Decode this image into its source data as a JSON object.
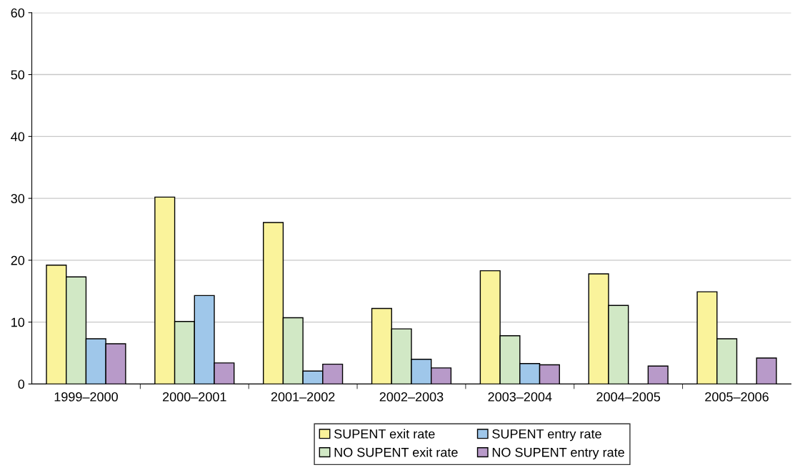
{
  "chart_data": {
    "type": "bar",
    "categories": [
      "1999–2000",
      "2000–2001",
      "2001–2002",
      "2002–2003",
      "2003–2004",
      "2004–2005",
      "2005–2006"
    ],
    "series": [
      {
        "name": "SUPENT exit rate",
        "color": "#faf39b",
        "values": [
          19.2,
          30.2,
          26.1,
          12.2,
          18.3,
          17.8,
          14.9
        ]
      },
      {
        "name": "NO SUPENT exit rate",
        "color": "#d1e8c5",
        "values": [
          17.3,
          10.1,
          10.7,
          8.9,
          7.8,
          12.7,
          7.3
        ]
      },
      {
        "name": "SUPENT entry rate",
        "color": "#9fc7ea",
        "values": [
          7.3,
          14.3,
          2.1,
          4.0,
          3.3,
          null,
          null
        ]
      },
      {
        "name": "NO SUPENT entry rate",
        "color": "#b89ac9",
        "values": [
          6.5,
          3.4,
          3.2,
          2.6,
          3.1,
          2.9,
          4.2
        ]
      }
    ],
    "ylim": [
      0,
      60
    ],
    "yticks": [
      0,
      10,
      20,
      30,
      40,
      50,
      60
    ],
    "grid": "y",
    "legend": "bottom"
  }
}
